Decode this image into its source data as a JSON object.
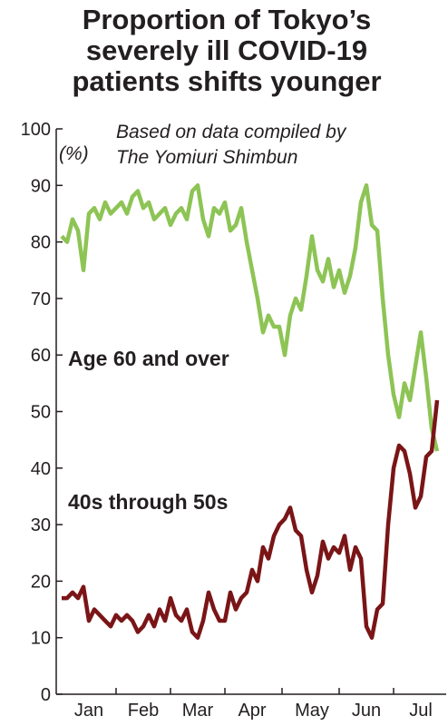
{
  "chart_data": {
    "type": "line",
    "title": [
      "Proportion of Tokyo’s",
      "severely ill COVID-19",
      "patients shifts younger"
    ],
    "subtitle": [
      "Based on data compiled by",
      "The Yomiuri Shimbun"
    ],
    "y_label": "(%)",
    "categories": [
      null,
      null,
      null,
      null,
      null,
      "Jan",
      null,
      null,
      null,
      null,
      null,
      null,
      null,
      null,
      null,
      "Feb",
      null,
      null,
      null,
      null,
      null,
      null,
      null,
      null,
      null,
      "Mar",
      null,
      null,
      null,
      null,
      null,
      null,
      null,
      null,
      null,
      "Apr",
      null,
      null,
      null,
      null,
      null,
      null,
      null,
      null,
      null,
      null,
      "May",
      null,
      null,
      null,
      null,
      null,
      null,
      null,
      null,
      null,
      "Jun",
      null,
      null,
      null,
      null,
      null,
      null,
      null,
      null,
      null,
      "Jul",
      null,
      null,
      null
    ],
    "series": [
      {
        "name": "Age 60 and over",
        "color": "#8dc455",
        "values": [
          81,
          80,
          84,
          82,
          75,
          85,
          86,
          84,
          87,
          85,
          86,
          87,
          85,
          88,
          89,
          86,
          87,
          84,
          85,
          86,
          83,
          85,
          86,
          84,
          89,
          90,
          84,
          81,
          86,
          85,
          87,
          82,
          83,
          86,
          80,
          75,
          70,
          64,
          67,
          65,
          65,
          60,
          67,
          70,
          68,
          74,
          81,
          75,
          73,
          77,
          72,
          75,
          71,
          74,
          79,
          87,
          90,
          83,
          82,
          70,
          60,
          53,
          49,
          55,
          52,
          58,
          64,
          56,
          47,
          43
        ]
      },
      {
        "name": "40s through 50s",
        "color": "#7a1517",
        "values": [
          17,
          17,
          18,
          17,
          19,
          13,
          15,
          14,
          13,
          12,
          14,
          13,
          14,
          13,
          11,
          12,
          14,
          12,
          15,
          13,
          17,
          14,
          13,
          15,
          11,
          10,
          13,
          18,
          15,
          13,
          13,
          18,
          15,
          17,
          18,
          22,
          20,
          26,
          24,
          28,
          30,
          31,
          33,
          29,
          28,
          22,
          18,
          21,
          27,
          24,
          26,
          25,
          28,
          22,
          26,
          24,
          12,
          10,
          15,
          16,
          30,
          40,
          44,
          43,
          39,
          33,
          35,
          42,
          43,
          52
        ]
      }
    ],
    "ylim": [
      0,
      100
    ],
    "yticks": [
      0,
      10,
      20,
      30,
      40,
      50,
      60,
      70,
      80,
      90,
      100
    ]
  }
}
